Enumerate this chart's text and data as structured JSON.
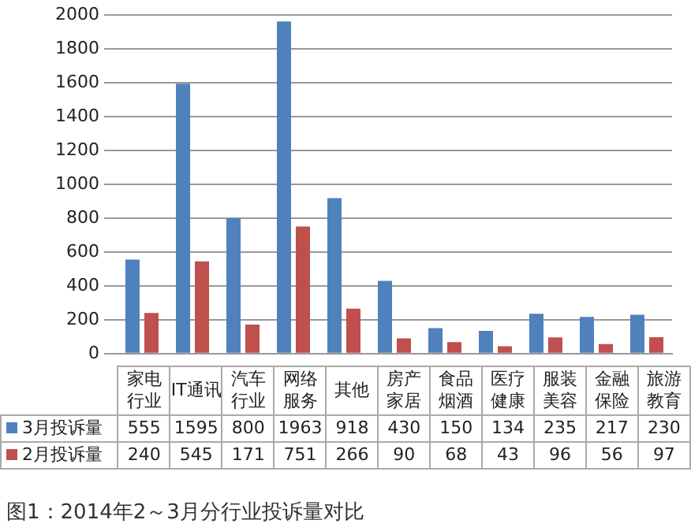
{
  "chart_data": {
    "type": "bar",
    "categories": [
      "家电行业",
      "IT通讯",
      "汽车行业",
      "网络服务",
      "其他",
      "房产家居",
      "食品烟酒",
      "医疗健康",
      "服装美容",
      "金融保险",
      "旅游教育"
    ],
    "series": [
      {
        "name": "3月投诉量",
        "color": "#4f81bd",
        "values": [
          555,
          1595,
          800,
          1963,
          918,
          430,
          150,
          134,
          235,
          217,
          230
        ]
      },
      {
        "name": "2月投诉量",
        "color": "#c0504d",
        "values": [
          240,
          545,
          171,
          751,
          266,
          90,
          68,
          43,
          96,
          56,
          97
        ]
      }
    ],
    "ylim": [
      0,
      2000
    ],
    "yticks": [
      0,
      200,
      400,
      600,
      800,
      1000,
      1200,
      1400,
      1600,
      1800,
      2000
    ],
    "grid": "y",
    "legend": "bottom",
    "data_labels": true,
    "annotations": [
      "图1：2014年2～3月分行业投诉量对比"
    ]
  }
}
